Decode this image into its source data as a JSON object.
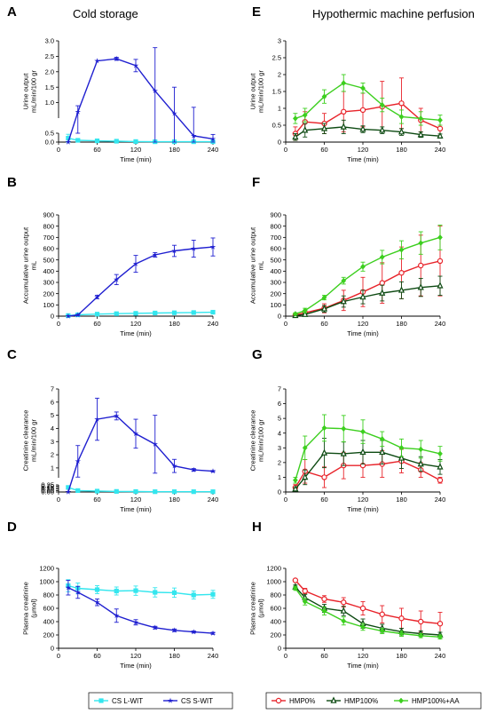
{
  "figure": {
    "left_title": "Cold storage",
    "right_title": "Hypothermic machine perfusion"
  },
  "colors": {
    "cs_lwit": "#33e6ee",
    "cs_swit": "#1f1fd0",
    "hmp0": "#e8232a",
    "hmp100": "#0d4a12",
    "hmp100aa": "#3ccf1e"
  },
  "legend_left": [
    {
      "label": "CS L-WIT",
      "series": "cs_lwit",
      "marker": "square"
    },
    {
      "label": "CS S-WIT",
      "series": "cs_swit",
      "marker": "star"
    }
  ],
  "legend_right": [
    {
      "label": "HMP0%",
      "series": "hmp0",
      "marker": "circle"
    },
    {
      "label": "HMP100%",
      "series": "hmp100",
      "marker": "triangle"
    },
    {
      "label": "HMP100%+AA",
      "series": "hmp100aa",
      "marker": "diamond"
    }
  ],
  "chart_data": [
    {
      "panel": "A",
      "type": "line",
      "title": "Cold storage",
      "xlabel": "Time (min)",
      "ylabel": "Urine output mL/min/100 gr",
      "xlim": [
        0,
        240
      ],
      "xticks": [
        0,
        60,
        120,
        180,
        240
      ],
      "broken_axis": true,
      "lower_ylim": [
        0,
        0.5
      ],
      "lower_yticks": [
        0.0,
        0.5
      ],
      "upper_ylim": [
        0.5,
        3.0
      ],
      "upper_yticks": [
        1.0,
        1.5,
        2.0,
        2.5,
        3.0
      ],
      "yticks_labels": [
        "0.0",
        "0.5",
        "1.0",
        "1.5",
        "2.0",
        "2.5",
        "3.0"
      ],
      "series": [
        {
          "name": "CS L-WIT",
          "color_key": "cs_lwit",
          "marker": "square",
          "x": [
            15,
            30,
            60,
            90,
            120,
            150,
            180,
            210,
            240
          ],
          "y": [
            0.22,
            0.1,
            0.07,
            0.05,
            0.03,
            0.02,
            0.02,
            0.02,
            0.02
          ],
          "err": [
            0.22,
            0.06,
            0.04,
            0.02,
            0.01,
            0.01,
            0.01,
            0.01,
            0.01
          ]
        },
        {
          "name": "CS S-WIT",
          "color_key": "cs_swit",
          "marker": "star",
          "x": [
            15,
            30,
            60,
            90,
            120,
            150,
            180,
            210,
            240
          ],
          "y": [
            0.0,
            0.7,
            2.35,
            2.42,
            2.2,
            1.38,
            0.65,
            0.35,
            0.18
          ],
          "err": [
            0.0,
            0.2,
            0.0,
            0.05,
            0.2,
            1.4,
            0.85,
            0.5,
            0.25
          ]
        }
      ]
    },
    {
      "panel": "B",
      "type": "line",
      "xlabel": "Time (min)",
      "ylabel": "Accumulative urine output mL",
      "xlim": [
        0,
        240
      ],
      "xticks": [
        0,
        60,
        120,
        180,
        240
      ],
      "ylim": [
        0,
        900
      ],
      "yticks": [
        0,
        100,
        200,
        300,
        400,
        500,
        600,
        700,
        800,
        900
      ],
      "series": [
        {
          "name": "CS L-WIT",
          "color_key": "cs_lwit",
          "marker": "square",
          "x": [
            15,
            30,
            60,
            90,
            120,
            150,
            180,
            210,
            240
          ],
          "y": [
            5,
            12,
            18,
            22,
            25,
            28,
            30,
            32,
            35
          ],
          "err": [
            5,
            6,
            8,
            8,
            8,
            8,
            8,
            8,
            8
          ]
        },
        {
          "name": "CS S-WIT",
          "color_key": "cs_swit",
          "marker": "star",
          "x": [
            15,
            30,
            60,
            90,
            120,
            150,
            180,
            210,
            240
          ],
          "y": [
            0,
            10,
            170,
            325,
            465,
            545,
            580,
            600,
            615
          ],
          "err": [
            0,
            5,
            15,
            45,
            75,
            20,
            50,
            75,
            80
          ]
        }
      ]
    },
    {
      "panel": "C",
      "type": "line",
      "xlabel": "Time (min)",
      "ylabel": "Creatinine clearance mL/min/100 gr",
      "xlim": [
        0,
        240
      ],
      "xticks": [
        0,
        60,
        120,
        180,
        240
      ],
      "broken_axis": true,
      "lower_ylim": [
        0,
        0.25
      ],
      "lower_yticks": [
        0.0,
        0.05,
        0.1,
        0.15,
        0.2,
        0.25
      ],
      "upper_ylim": [
        0.25,
        7
      ],
      "upper_yticks": [
        1,
        2,
        3,
        4,
        5,
        6,
        7
      ],
      "yticks_labels": [
        "0.00",
        "0.05",
        "0.10",
        "0.15",
        "0.20",
        "0.25",
        "1",
        "2",
        "3",
        "4",
        "5",
        "6",
        "7"
      ],
      "series": [
        {
          "name": "CS L-WIT",
          "color_key": "cs_lwit",
          "marker": "square",
          "x": [
            15,
            30,
            60,
            90,
            120,
            150,
            180,
            210,
            240
          ],
          "y": [
            0.16,
            0.05,
            0.03,
            0.02,
            0.015,
            0.01,
            0.01,
            0.01,
            0.01
          ],
          "err": [
            0.04,
            0.02,
            0.01,
            0.01,
            0.005,
            0.005,
            0.005,
            0.005,
            0.005
          ]
        },
        {
          "name": "CS S-WIT",
          "color_key": "cs_swit",
          "marker": "star",
          "x": [
            15,
            30,
            60,
            90,
            120,
            150,
            180,
            210,
            240
          ],
          "y": [
            0.0,
            1.5,
            4.7,
            4.95,
            3.6,
            2.8,
            1.15,
            0.85,
            0.75
          ],
          "err": [
            0.0,
            1.2,
            1.6,
            0.3,
            1.1,
            2.2,
            0.5,
            0.1,
            0.05
          ]
        }
      ]
    },
    {
      "panel": "D",
      "type": "line",
      "xlabel": "Time (min)",
      "ylabel": "Plasma creatinine (µmol)",
      "xlim": [
        0,
        240
      ],
      "xticks": [
        0,
        60,
        120,
        180,
        240
      ],
      "ylim": [
        0,
        1200
      ],
      "yticks": [
        0,
        200,
        400,
        600,
        800,
        1000,
        1200
      ],
      "series": [
        {
          "name": "CS L-WIT",
          "color_key": "cs_lwit",
          "marker": "square",
          "x": [
            15,
            30,
            60,
            90,
            120,
            150,
            180,
            210,
            240
          ],
          "y": [
            940,
            900,
            880,
            860,
            865,
            840,
            835,
            800,
            810
          ],
          "err": [
            90,
            80,
            60,
            60,
            70,
            70,
            70,
            60,
            60
          ]
        },
        {
          "name": "CS S-WIT",
          "color_key": "cs_swit",
          "marker": "star",
          "x": [
            15,
            30,
            60,
            90,
            120,
            150,
            180,
            210,
            240
          ],
          "y": [
            910,
            840,
            690,
            490,
            390,
            310,
            270,
            245,
            225
          ],
          "err": [
            110,
            90,
            50,
            100,
            40,
            20,
            20,
            15,
            15
          ]
        }
      ]
    },
    {
      "panel": "E",
      "type": "line",
      "title": "Hypothermic machine perfusion",
      "xlabel": "Time (min)",
      "ylabel": "Urine output mL/min/100 gr",
      "xlim": [
        0,
        240
      ],
      "xticks": [
        0,
        60,
        120,
        180,
        240
      ],
      "ylim": [
        0,
        3.0
      ],
      "yticks": [
        0.0,
        0.5,
        1.0,
        1.5,
        2.0,
        2.5,
        3.0
      ],
      "series": [
        {
          "name": "HMP0%",
          "color_key": "hmp0",
          "marker": "circle",
          "x": [
            15,
            30,
            60,
            90,
            120,
            150,
            180,
            210,
            240
          ],
          "y": [
            0.25,
            0.6,
            0.55,
            0.9,
            0.95,
            1.05,
            1.15,
            0.65,
            0.4
          ],
          "err": [
            0.2,
            0.3,
            0.3,
            0.6,
            0.5,
            0.75,
            0.75,
            0.35,
            0.25
          ]
        },
        {
          "name": "HMP100%",
          "color_key": "hmp100",
          "marker": "triangle",
          "x": [
            15,
            30,
            60,
            90,
            120,
            150,
            180,
            210,
            240
          ],
          "y": [
            0.15,
            0.35,
            0.4,
            0.45,
            0.38,
            0.35,
            0.3,
            0.22,
            0.18
          ],
          "err": [
            0.1,
            0.2,
            0.15,
            0.2,
            0.1,
            0.1,
            0.1,
            0.08,
            0.06
          ]
        },
        {
          "name": "HMP100%+AA",
          "color_key": "hmp100aa",
          "marker": "diamond",
          "x": [
            15,
            30,
            60,
            90,
            120,
            150,
            180,
            210,
            240
          ],
          "y": [
            0.7,
            0.8,
            1.35,
            1.75,
            1.6,
            1.1,
            0.75,
            0.7,
            0.65
          ],
          "err": [
            0.15,
            0.2,
            0.2,
            0.25,
            0.15,
            0.2,
            0.2,
            0.2,
            0.15
          ]
        }
      ]
    },
    {
      "panel": "F",
      "type": "line",
      "xlabel": "Time (min)",
      "ylabel": "Accumulative urine output mL",
      "xlim": [
        0,
        240
      ],
      "xticks": [
        0,
        60,
        120,
        180,
        240
      ],
      "ylim": [
        0,
        900
      ],
      "yticks": [
        0,
        100,
        200,
        300,
        400,
        500,
        600,
        700,
        800,
        900
      ],
      "series": [
        {
          "name": "HMP0%",
          "color_key": "hmp0",
          "marker": "circle",
          "x": [
            15,
            30,
            60,
            90,
            120,
            150,
            180,
            210,
            240
          ],
          "y": [
            10,
            30,
            70,
            140,
            215,
            295,
            385,
            450,
            490
          ],
          "err": [
            10,
            20,
            40,
            90,
            130,
            180,
            230,
            270,
            310
          ]
        },
        {
          "name": "HMP100%",
          "color_key": "hmp100",
          "marker": "triangle",
          "x": [
            15,
            30,
            60,
            90,
            120,
            150,
            180,
            210,
            240
          ],
          "y": [
            5,
            15,
            65,
            130,
            170,
            205,
            230,
            255,
            270
          ],
          "err": [
            5,
            10,
            30,
            50,
            60,
            70,
            75,
            80,
            85
          ]
        },
        {
          "name": "HMP100%+AA",
          "color_key": "hmp100aa",
          "marker": "diamond",
          "x": [
            15,
            30,
            60,
            90,
            120,
            150,
            180,
            210,
            240
          ],
          "y": [
            20,
            50,
            165,
            315,
            440,
            525,
            590,
            650,
            700
          ],
          "err": [
            10,
            20,
            20,
            30,
            40,
            60,
            80,
            100,
            110
          ]
        }
      ]
    },
    {
      "panel": "G",
      "type": "line",
      "xlabel": "Time (min)",
      "ylabel": "Creatinine clearance mL/min/100 gr",
      "xlim": [
        0,
        240
      ],
      "xticks": [
        0,
        60,
        120,
        180,
        240
      ],
      "ylim": [
        0,
        7
      ],
      "yticks": [
        0,
        1,
        2,
        3,
        4,
        5,
        6,
        7
      ],
      "series": [
        {
          "name": "HMP0%",
          "color_key": "hmp0",
          "marker": "circle",
          "x": [
            15,
            30,
            60,
            90,
            120,
            150,
            180,
            210,
            240
          ],
          "y": [
            0.3,
            1.4,
            1.0,
            1.8,
            1.8,
            1.9,
            2.1,
            1.5,
            0.8
          ],
          "err": [
            0.2,
            0.8,
            0.7,
            0.9,
            0.8,
            0.9,
            0.8,
            0.5,
            0.2
          ]
        },
        {
          "name": "HMP100%",
          "color_key": "hmp100",
          "marker": "triangle",
          "x": [
            15,
            30,
            60,
            90,
            120,
            150,
            180,
            210,
            240
          ],
          "y": [
            0.2,
            1.0,
            2.65,
            2.6,
            2.7,
            2.7,
            2.3,
            1.9,
            1.7
          ],
          "err": [
            0.1,
            0.5,
            1.0,
            0.8,
            0.8,
            0.8,
            0.7,
            0.5,
            0.5
          ]
        },
        {
          "name": "HMP100%+AA",
          "color_key": "hmp100aa",
          "marker": "diamond",
          "x": [
            15,
            30,
            60,
            90,
            120,
            150,
            180,
            210,
            240
          ],
          "y": [
            0.8,
            3.0,
            4.35,
            4.3,
            4.1,
            3.6,
            3.0,
            2.9,
            2.6
          ],
          "err": [
            0.2,
            0.8,
            0.9,
            0.9,
            0.8,
            0.5,
            0.6,
            0.6,
            0.5
          ]
        }
      ]
    },
    {
      "panel": "H",
      "type": "line",
      "xlabel": "Time (min)",
      "ylabel": "Plasma creatinine (µmol)",
      "xlim": [
        0,
        240
      ],
      "xticks": [
        0,
        60,
        120,
        180,
        240
      ],
      "ylim": [
        0,
        1200
      ],
      "yticks": [
        0,
        200,
        400,
        600,
        800,
        1000,
        1200
      ],
      "series": [
        {
          "name": "HMP0%",
          "color_key": "hmp0",
          "marker": "circle",
          "x": [
            15,
            30,
            60,
            90,
            120,
            150,
            180,
            210,
            240
          ],
          "y": [
            1020,
            860,
            740,
            690,
            600,
            510,
            450,
            400,
            370
          ],
          "err": [
            20,
            40,
            50,
            70,
            100,
            130,
            150,
            160,
            170
          ]
        },
        {
          "name": "HMP100%",
          "color_key": "hmp100",
          "marker": "triangle",
          "x": [
            15,
            30,
            60,
            90,
            120,
            150,
            180,
            210,
            240
          ],
          "y": [
            920,
            760,
            600,
            560,
            370,
            300,
            250,
            220,
            200
          ],
          "err": [
            30,
            50,
            60,
            70,
            70,
            60,
            50,
            40,
            40
          ]
        },
        {
          "name": "HMP100%+AA",
          "color_key": "hmp100aa",
          "marker": "diamond",
          "x": [
            15,
            30,
            60,
            90,
            120,
            150,
            180,
            210,
            240
          ],
          "y": [
            900,
            700,
            560,
            410,
            320,
            260,
            220,
            190,
            170
          ],
          "err": [
            30,
            50,
            60,
            60,
            50,
            40,
            40,
            30,
            30
          ]
        }
      ]
    }
  ]
}
